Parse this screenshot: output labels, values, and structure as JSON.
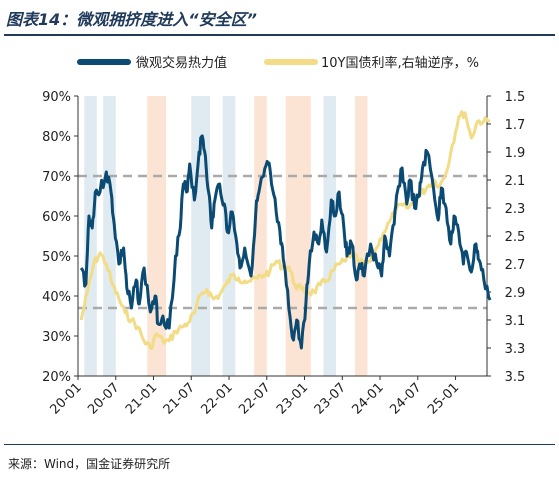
{
  "figure": {
    "title": "图表14：微观拥挤度进入“安全区”",
    "source": "来源：Wind，国金证券研究所"
  },
  "colors": {
    "series_left": "#0b4a72",
    "series_right": "#f2dc86",
    "band_blue": "#dde8f0",
    "band_orange": "#fbe1cf",
    "dash": "#aaaaaa",
    "title": "#1f3a5a"
  },
  "chart_data": {
    "type": "line",
    "legend": {
      "placement": "top",
      "entries": [
        "微观交易热力值",
        "10Y国债利率,右轴逆序，%"
      ]
    },
    "x_axis": {
      "start": "2020-01",
      "end": "2025-06",
      "tick_labels": [
        "20-01",
        "20-07",
        "21-01",
        "21-07",
        "22-01",
        "22-07",
        "23-01",
        "23-07",
        "24-01",
        "24-07",
        "25-01"
      ]
    },
    "y_left": {
      "range": [
        20,
        90
      ],
      "tick_labels": [
        "20%",
        "30%",
        "40%",
        "50%",
        "60%",
        "70%",
        "80%",
        "90%"
      ]
    },
    "y_right": {
      "range": [
        1.5,
        3.5
      ],
      "reversed": true,
      "tick_labels": [
        "1.5",
        "1.7",
        "1.9",
        "2.1",
        "2.3",
        "2.5",
        "2.7",
        "2.9",
        "3.1",
        "3.3",
        "3.5"
      ]
    },
    "reference_lines": [
      {
        "axis": "left",
        "value": 70,
        "style": "dashed"
      },
      {
        "axis": "left",
        "value": 37,
        "style": "dashed"
      }
    ],
    "shaded_bands": [
      {
        "color": "blue",
        "from": "2020-02",
        "to": "2020-03"
      },
      {
        "color": "blue",
        "from": "2020-05",
        "to": "2020-06"
      },
      {
        "color": "orange",
        "from": "2020-12",
        "to": "2021-02"
      },
      {
        "color": "blue",
        "from": "2021-07",
        "to": "2021-09"
      },
      {
        "color": "blue",
        "from": "2021-12",
        "to": "2022-01"
      },
      {
        "color": "orange",
        "from": "2022-05",
        "to": "2022-06"
      },
      {
        "color": "orange",
        "from": "2022-10",
        "to": "2023-01"
      },
      {
        "color": "blue",
        "from": "2023-04",
        "to": "2023-05"
      },
      {
        "color": "orange",
        "from": "2023-09",
        "to": "2023-10"
      }
    ],
    "series": [
      {
        "name": "微观交易热力值",
        "axis": "left",
        "points": [
          [
            "2020-01",
            47
          ],
          [
            "2020-02",
            43
          ],
          [
            "2020-02",
            60
          ],
          [
            "2020-03",
            57
          ],
          [
            "2020-03",
            66
          ],
          [
            "2020-04",
            66
          ],
          [
            "2020-05",
            71
          ],
          [
            "2020-06",
            66
          ],
          [
            "2020-06",
            58
          ],
          [
            "2020-07",
            48
          ],
          [
            "2020-08",
            52
          ],
          [
            "2020-08",
            42
          ],
          [
            "2020-09",
            37
          ],
          [
            "2020-10",
            44
          ],
          [
            "2020-10",
            38
          ],
          [
            "2020-11",
            47
          ],
          [
            "2020-12",
            36
          ],
          [
            "2021-01",
            40
          ],
          [
            "2021-01",
            33
          ],
          [
            "2021-02",
            35
          ],
          [
            "2021-03",
            32
          ],
          [
            "2021-04",
            50
          ],
          [
            "2021-05",
            57
          ],
          [
            "2021-05",
            68
          ],
          [
            "2021-06",
            66
          ],
          [
            "2021-06",
            73
          ],
          [
            "2021-07",
            64
          ],
          [
            "2021-08",
            76
          ],
          [
            "2021-08",
            80
          ],
          [
            "2021-09",
            75
          ],
          [
            "2021-09",
            66
          ],
          [
            "2021-10",
            57
          ],
          [
            "2021-10",
            64
          ],
          [
            "2021-11",
            68
          ],
          [
            "2021-12",
            63
          ],
          [
            "2021-12",
            56
          ],
          [
            "2022-01",
            61
          ],
          [
            "2022-02",
            53
          ],
          [
            "2022-02",
            47
          ],
          [
            "2022-03",
            52
          ],
          [
            "2022-04",
            45
          ],
          [
            "2022-05",
            61
          ],
          [
            "2022-05",
            66
          ],
          [
            "2022-06",
            70
          ],
          [
            "2022-07",
            73
          ],
          [
            "2022-07",
            68
          ],
          [
            "2022-08",
            61
          ],
          [
            "2022-09",
            53
          ],
          [
            "2022-09",
            48
          ],
          [
            "2022-10",
            37
          ],
          [
            "2022-11",
            29
          ],
          [
            "2022-11",
            34
          ],
          [
            "2022-12",
            27
          ],
          [
            "2023-01",
            39
          ],
          [
            "2023-01",
            48
          ],
          [
            "2023-02",
            56
          ],
          [
            "2023-03",
            53
          ],
          [
            "2023-03",
            59
          ],
          [
            "2023-04",
            51
          ],
          [
            "2023-05",
            64
          ],
          [
            "2023-05",
            60
          ],
          [
            "2023-06",
            66
          ],
          [
            "2023-07",
            57
          ],
          [
            "2023-07",
            50
          ],
          [
            "2023-08",
            53
          ],
          [
            "2023-09",
            44
          ],
          [
            "2023-09",
            48
          ],
          [
            "2023-10",
            45
          ],
          [
            "2023-11",
            53
          ],
          [
            "2023-12",
            48
          ],
          [
            "2024-01",
            45
          ],
          [
            "2024-01",
            55
          ],
          [
            "2024-02",
            50
          ],
          [
            "2024-03",
            58
          ],
          [
            "2024-03",
            66
          ],
          [
            "2024-04",
            72
          ],
          [
            "2024-05",
            63
          ],
          [
            "2024-05",
            69
          ],
          [
            "2024-06",
            62
          ],
          [
            "2024-07",
            65
          ],
          [
            "2024-07",
            72
          ],
          [
            "2024-08",
            76
          ],
          [
            "2024-09",
            67
          ],
          [
            "2024-10",
            59
          ],
          [
            "2024-10",
            67
          ],
          [
            "2024-11",
            62
          ],
          [
            "2024-12",
            53
          ],
          [
            "2024-12",
            60
          ],
          [
            "2025-01",
            56
          ],
          [
            "2025-02",
            48
          ],
          [
            "2025-02",
            51
          ],
          [
            "2025-03",
            46
          ],
          [
            "2025-04",
            53
          ],
          [
            "2025-04",
            49
          ],
          [
            "2025-05",
            44
          ],
          [
            "2025-06",
            39
          ]
        ]
      },
      {
        "name": "10Y国债利率,右轴逆序，%",
        "axis": "right",
        "points": [
          [
            "2020-01",
            3.1
          ],
          [
            "2020-02",
            2.9
          ],
          [
            "2020-03",
            2.7
          ],
          [
            "2020-04",
            2.62
          ],
          [
            "2020-05",
            2.7
          ],
          [
            "2020-06",
            2.85
          ],
          [
            "2020-07",
            2.95
          ],
          [
            "2020-08",
            3.05
          ],
          [
            "2020-09",
            3.1
          ],
          [
            "2020-10",
            3.15
          ],
          [
            "2020-11",
            3.25
          ],
          [
            "2020-12",
            3.3
          ],
          [
            "2021-01",
            3.2
          ],
          [
            "2021-02",
            3.25
          ],
          [
            "2021-03",
            3.25
          ],
          [
            "2021-04",
            3.18
          ],
          [
            "2021-05",
            3.15
          ],
          [
            "2021-06",
            3.12
          ],
          [
            "2021-07",
            3.05
          ],
          [
            "2021-08",
            2.92
          ],
          [
            "2021-09",
            2.88
          ],
          [
            "2021-10",
            2.95
          ],
          [
            "2021-11",
            2.92
          ],
          [
            "2021-12",
            2.85
          ],
          [
            "2022-01",
            2.78
          ],
          [
            "2022-02",
            2.8
          ],
          [
            "2022-03",
            2.82
          ],
          [
            "2022-04",
            2.82
          ],
          [
            "2022-05",
            2.8
          ],
          [
            "2022-06",
            2.78
          ],
          [
            "2022-07",
            2.75
          ],
          [
            "2022-08",
            2.68
          ],
          [
            "2022-09",
            2.72
          ],
          [
            "2022-10",
            2.72
          ],
          [
            "2022-11",
            2.85
          ],
          [
            "2022-12",
            2.88
          ],
          [
            "2023-01",
            2.9
          ],
          [
            "2023-02",
            2.9
          ],
          [
            "2023-03",
            2.85
          ],
          [
            "2023-04",
            2.82
          ],
          [
            "2023-05",
            2.75
          ],
          [
            "2023-06",
            2.7
          ],
          [
            "2023-07",
            2.68
          ],
          [
            "2023-08",
            2.62
          ],
          [
            "2023-09",
            2.68
          ],
          [
            "2023-10",
            2.7
          ],
          [
            "2023-11",
            2.68
          ],
          [
            "2023-12",
            2.58
          ],
          [
            "2024-01",
            2.48
          ],
          [
            "2024-02",
            2.4
          ],
          [
            "2024-03",
            2.32
          ],
          [
            "2024-04",
            2.28
          ],
          [
            "2024-05",
            2.3
          ],
          [
            "2024-06",
            2.25
          ],
          [
            "2024-07",
            2.2
          ],
          [
            "2024-08",
            2.15
          ],
          [
            "2024-09",
            2.1
          ],
          [
            "2024-10",
            2.14
          ],
          [
            "2024-11",
            2.05
          ],
          [
            "2024-12",
            1.85
          ],
          [
            "2025-01",
            1.65
          ],
          [
            "2025-02",
            1.62
          ],
          [
            "2025-03",
            1.8
          ],
          [
            "2025-04",
            1.68
          ],
          [
            "2025-05",
            1.68
          ],
          [
            "2025-06",
            1.68
          ]
        ]
      }
    ]
  }
}
